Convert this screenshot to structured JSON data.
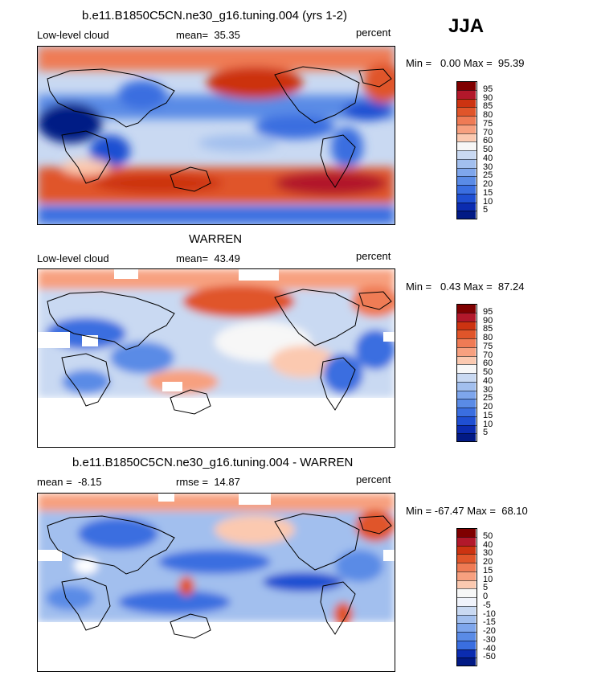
{
  "season": "JJA",
  "panels": [
    {
      "title": "b.e11.B1850C5CN.ne30_g16.tuning.004 (yrs 1-2)",
      "left_label": "Low-level cloud",
      "stat_label": "mean=  35.35",
      "units": "percent",
      "minmax": "Min =   0.00 Max =  95.39",
      "levels": [
        "95",
        "90",
        "85",
        "80",
        "75",
        "70",
        "60",
        "50",
        "40",
        "30",
        "25",
        "20",
        "15",
        "10",
        "5"
      ],
      "colors": [
        "#7f0000",
        "#b2182b",
        "#cc3311",
        "#e0552a",
        "#ef7b55",
        "#f7a07f",
        "#fbc9b0",
        "#f7f7f7",
        "#c9d9f2",
        "#a2bfee",
        "#7ea6ec",
        "#5a8be6",
        "#3a6ee0",
        "#1f4fd2",
        "#0b2cb0",
        "#021a85"
      ]
    },
    {
      "title": "WARREN",
      "left_label": "Low-level cloud",
      "stat_label": "mean=  43.49",
      "units": "percent",
      "minmax": "Min =   0.43 Max =  87.24",
      "levels": [
        "95",
        "90",
        "85",
        "80",
        "75",
        "70",
        "60",
        "50",
        "40",
        "30",
        "25",
        "20",
        "15",
        "10",
        "5"
      ],
      "colors": [
        "#7f0000",
        "#b2182b",
        "#cc3311",
        "#e0552a",
        "#ef7b55",
        "#f7a07f",
        "#fbc9b0",
        "#f7f7f7",
        "#c9d9f2",
        "#a2bfee",
        "#7ea6ec",
        "#5a8be6",
        "#3a6ee0",
        "#1f4fd2",
        "#0b2cb0",
        "#021a85"
      ]
    },
    {
      "title": "b.e11.B1850C5CN.ne30_g16.tuning.004 - WARREN",
      "left_label": "mean =  -8.15",
      "stat_label": "rmse =  14.87",
      "units": "percent",
      "minmax": "Min = -67.47 Max =  68.10",
      "levels": [
        "50",
        "40",
        "30",
        "20",
        "15",
        "10",
        "5",
        "0",
        "-5",
        "-10",
        "-15",
        "-20",
        "-30",
        "-40",
        "-50"
      ],
      "colors": [
        "#7f0000",
        "#b2182b",
        "#cc3311",
        "#e0552a",
        "#ef7b55",
        "#f7a07f",
        "#fbc9b0",
        "#f7f7f7",
        "#f0f3fb",
        "#c9d9f2",
        "#a2bfee",
        "#7ea6ec",
        "#5a8be6",
        "#3a6ee0",
        "#0b2cb0",
        "#021a85"
      ]
    }
  ]
}
